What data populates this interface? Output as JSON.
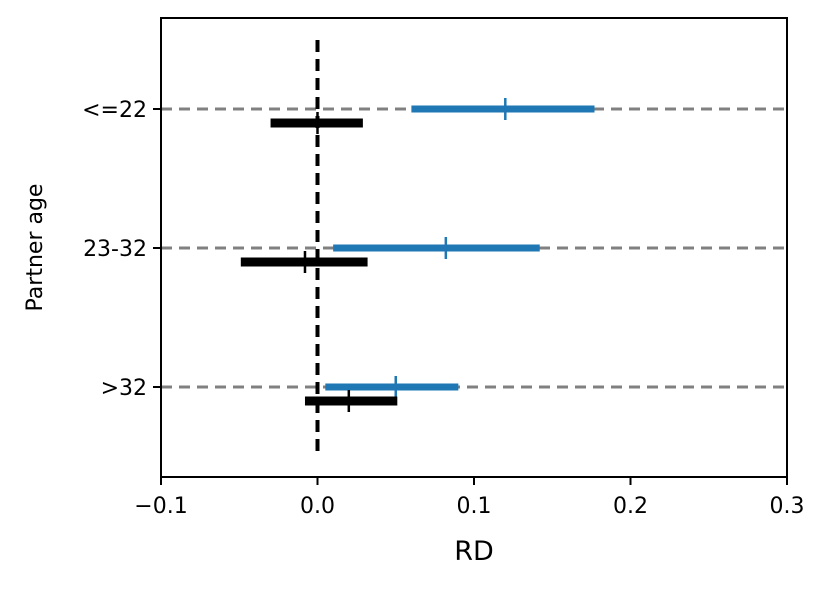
{
  "chart_data": {
    "type": "forest",
    "title": "",
    "xlabel": "RD",
    "ylabel": "Partner age",
    "xlim": [
      -0.1,
      0.3
    ],
    "x_ticks": [
      -0.1,
      0.0,
      0.1,
      0.2,
      0.3
    ],
    "x_tick_labels": [
      "−0.1",
      "0.0",
      "0.1",
      "0.2",
      "0.3"
    ],
    "categories": [
      "<=22",
      "23-32",
      ">32"
    ],
    "reference_line_x": 0.0,
    "grid": "horizontal dashed at each category",
    "legend": "none",
    "series": [
      {
        "color": "#1f77b4",
        "points": [
          {
            "category": "<=22",
            "estimate": 0.12,
            "lower": 0.06,
            "upper": 0.177
          },
          {
            "category": "23-32",
            "estimate": 0.082,
            "lower": 0.01,
            "upper": 0.142
          },
          {
            "category": ">32",
            "estimate": 0.05,
            "lower": 0.005,
            "upper": 0.09
          }
        ]
      },
      {
        "color": "#000000",
        "points": [
          {
            "category": "<=22",
            "estimate": 0.0,
            "lower": -0.03,
            "upper": 0.029
          },
          {
            "category": "23-32",
            "estimate": -0.008,
            "lower": -0.049,
            "upper": 0.032
          },
          {
            "category": ">32",
            "estimate": 0.02,
            "lower": -0.008,
            "upper": 0.051
          }
        ]
      }
    ]
  }
}
